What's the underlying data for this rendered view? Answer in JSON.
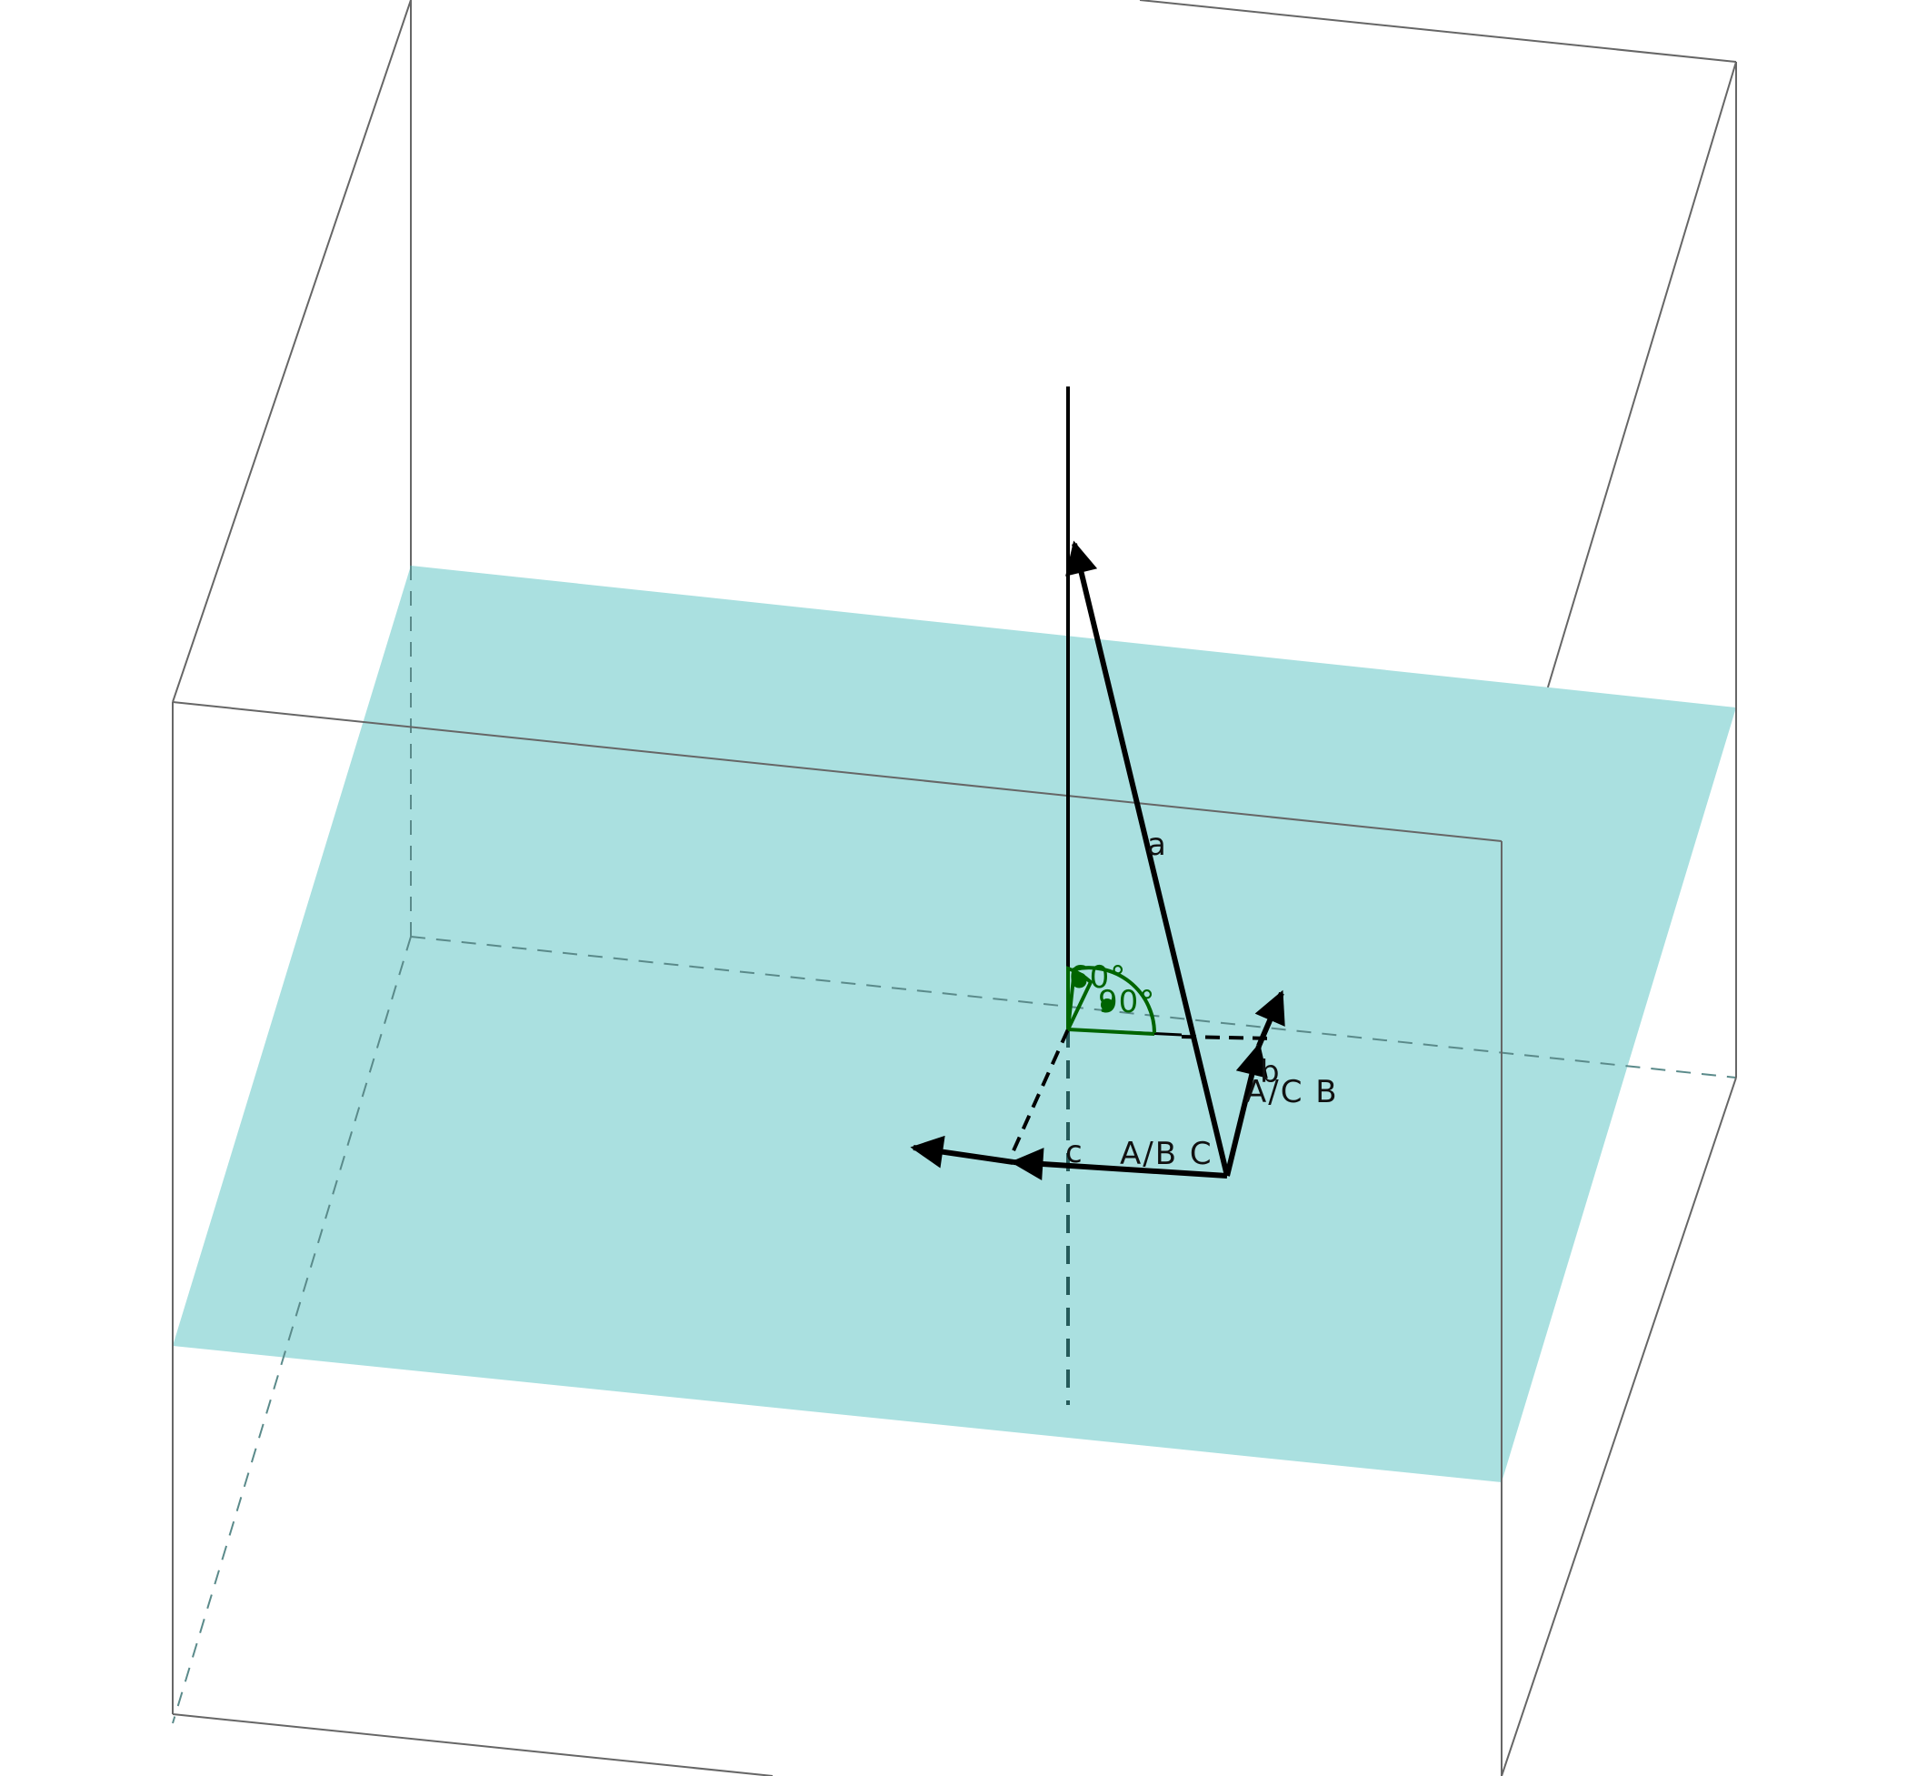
{
  "scene": {
    "colors": {
      "background": "#ffffff",
      "plane": "#aae0e0",
      "box_edge": "#666666",
      "hidden_edge": "#5a8a8a",
      "vector": "#000000",
      "angle": "#006400"
    }
  },
  "labels": {
    "vector_a": "a",
    "vector_c": "c",
    "vector_b": "b",
    "component_ab_c": "A/B C",
    "component_ac_b": "A/C B"
  },
  "angles": {
    "angle_60": "60°",
    "angle_90": "90°"
  }
}
